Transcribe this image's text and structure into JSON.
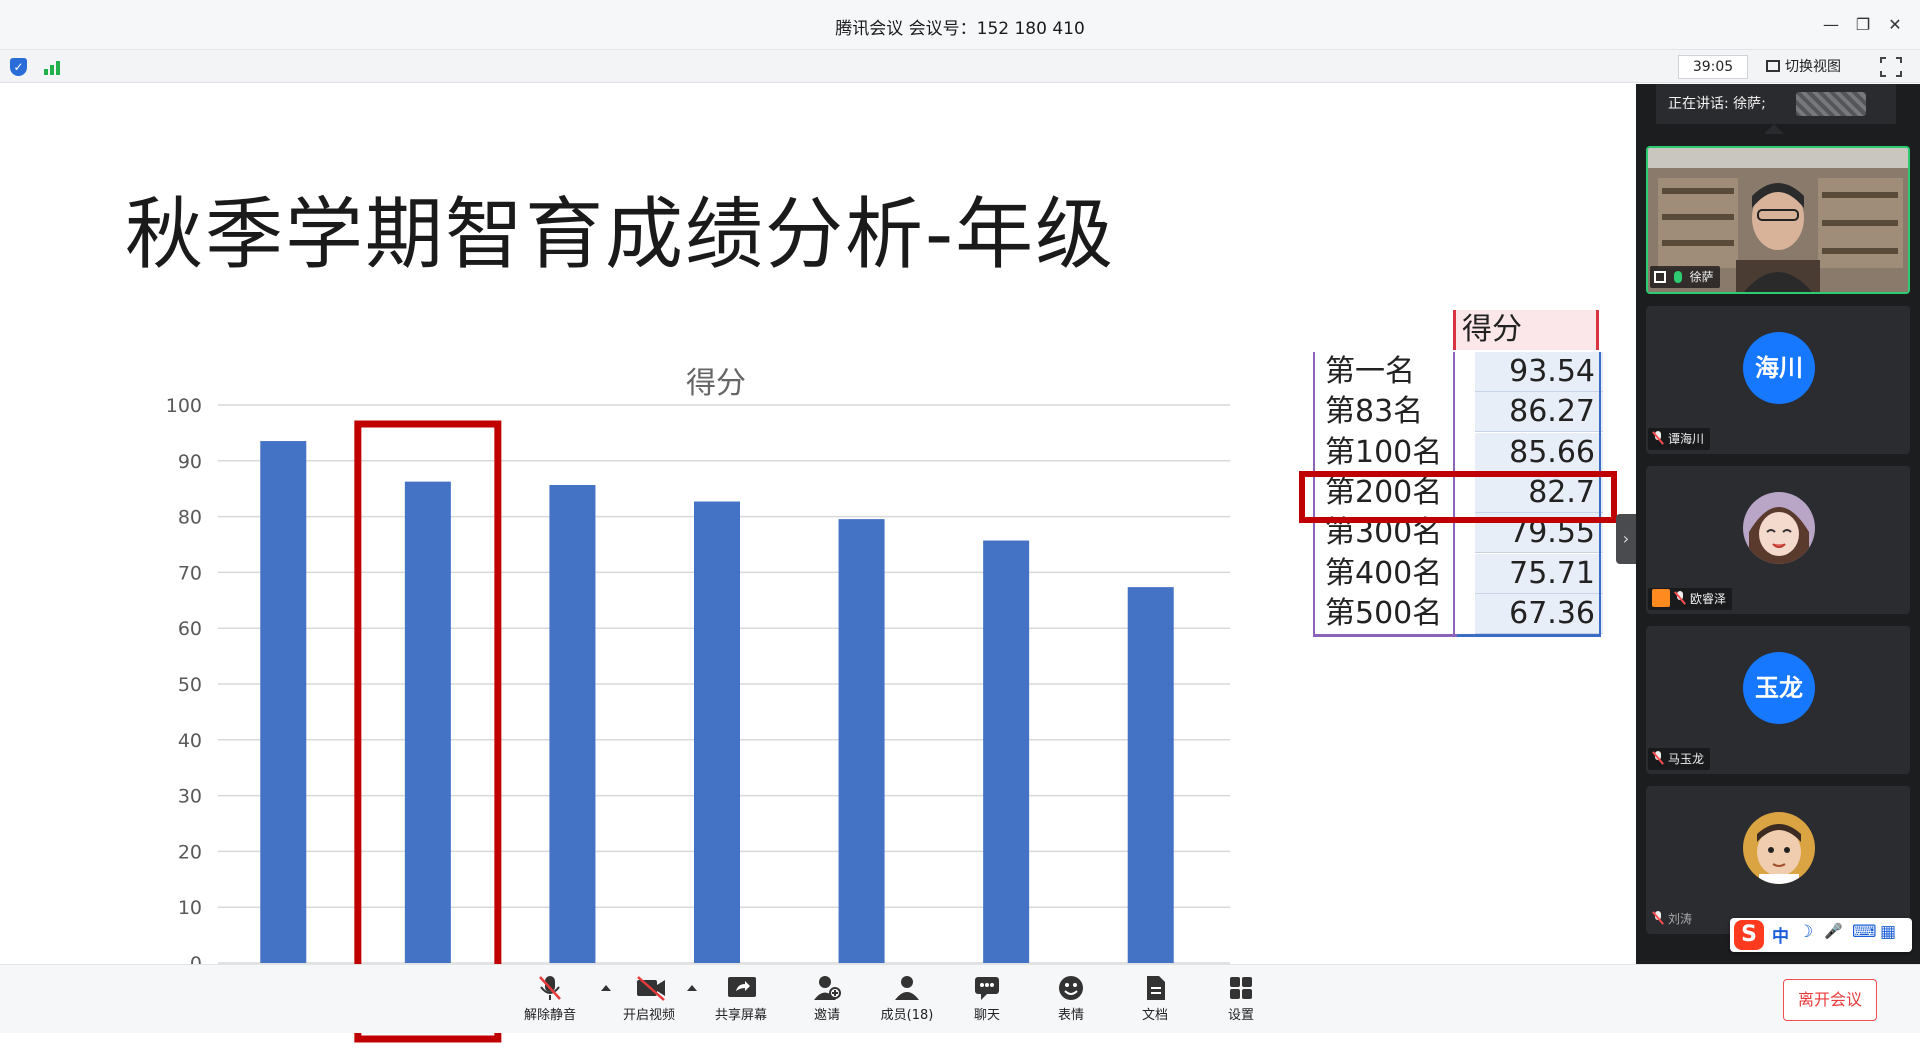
{
  "window": {
    "title": "腾讯会议 会议号：152 180 410",
    "minimize_glyph": "—",
    "restore_glyph": "❐",
    "close_glyph": "✕"
  },
  "statusbar": {
    "shield_icon": "security-shield-icon",
    "signal_icon": "network-signal-icon",
    "timer": "39:05",
    "switch_view_label": "切换视图"
  },
  "slide": {
    "title": "秋季学期智育成绩分析-年级"
  },
  "chart_data": {
    "type": "bar",
    "title": "得分",
    "categories": [
      "第一名",
      "第83名",
      "第100名",
      "第200名",
      "第300名",
      "第400名",
      "第500名"
    ],
    "values": [
      93.54,
      86.27,
      85.66,
      82.7,
      79.55,
      75.71,
      67.36
    ],
    "ylim": [
      0,
      100
    ],
    "yticks": [
      0,
      10,
      20,
      30,
      40,
      50,
      60,
      70,
      80,
      90,
      100
    ],
    "grid": true,
    "bar_color": "#4472c4",
    "highlight_category": "第83名",
    "highlight_color": "#c00000"
  },
  "table": {
    "header": "得分",
    "rows": [
      {
        "name": "第一名",
        "value": "93.54"
      },
      {
        "name": "第83名",
        "value": "86.27"
      },
      {
        "name": "第100名",
        "value": "85.66"
      },
      {
        "name": "第200名",
        "value": "82.7"
      },
      {
        "name": "第300名",
        "value": "79.55"
      },
      {
        "name": "第400名",
        "value": "75.71"
      },
      {
        "name": "第500名",
        "value": "67.36"
      }
    ]
  },
  "sidebar": {
    "speaking_label": "正在讲话: 徐萨;",
    "expand_glyph": "›",
    "participants": [
      {
        "name": "徐萨",
        "type": "video"
      },
      {
        "name": "谭海川",
        "avatar_text": "海川",
        "type": "initials"
      },
      {
        "name": "欧睿泽",
        "type": "image"
      },
      {
        "name": "马玉龙",
        "avatar_text": "玉龙",
        "type": "initials"
      },
      {
        "name": "刘涛",
        "type": "image"
      }
    ]
  },
  "ime": {
    "logo": "S",
    "lang": "中",
    "moon": "☽",
    "mic": "🎤",
    "keyboard": "⌨",
    "grid": "▦"
  },
  "toolbar": {
    "unmute": "解除静音",
    "start_video": "开启视频",
    "share_screen": "共享屏幕",
    "invite": "邀请",
    "members": "成员(18)",
    "chat": "聊天",
    "reactions": "表情",
    "docs": "文档",
    "settings": "设置",
    "leave": "离开会议"
  },
  "colors": {
    "accent_blue": "#1677ff",
    "leave_red": "#e83a3a",
    "highlight_red": "#c00000",
    "active_green": "#2ecc71"
  }
}
